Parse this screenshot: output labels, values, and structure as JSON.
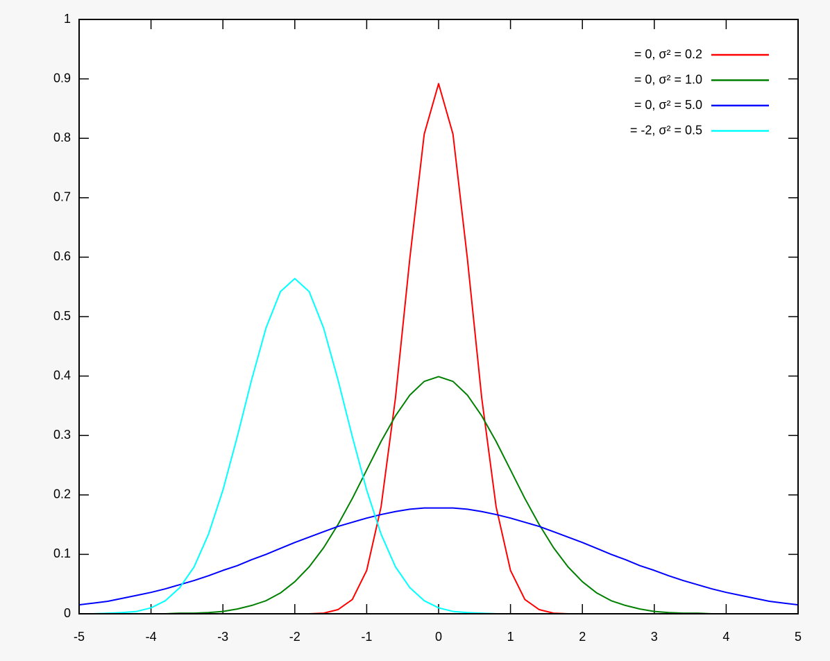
{
  "chart_data": {
    "type": "line",
    "x": [
      -5,
      -4.8,
      -4.6,
      -4.4,
      -4.2,
      -4,
      -3.8,
      -3.6,
      -3.4,
      -3.2,
      -3,
      -2.8,
      -2.6,
      -2.4,
      -2.2,
      -2,
      -1.8,
      -1.6,
      -1.4,
      -1.2,
      -1,
      -0.8,
      -0.6,
      -0.4,
      -0.2,
      0,
      0.2,
      0.4,
      0.6,
      0.8,
      1,
      1.2,
      1.4,
      1.6,
      1.8,
      2,
      2.2,
      2.4,
      2.6,
      2.8,
      3,
      3.2,
      3.4,
      3.6,
      3.8,
      4,
      4.2,
      4.4,
      4.6,
      4.8,
      5
    ],
    "series": [
      {
        "name": "= 0, σ² = 0.2",
        "color": "#ff0000",
        "values": [
          0,
          0,
          0,
          0,
          0,
          0,
          0,
          0,
          0,
          0,
          0,
          0,
          0,
          0,
          0,
          0,
          0,
          0.001,
          0.007,
          0.024,
          0.073,
          0.18,
          0.363,
          0.598,
          0.807,
          0.892,
          0.807,
          0.598,
          0.363,
          0.18,
          0.073,
          0.024,
          0.007,
          0.001,
          0,
          0,
          0,
          0,
          0,
          0,
          0,
          0,
          0,
          0,
          0,
          0,
          0,
          0,
          0,
          0,
          0
        ]
      },
      {
        "name": "= 0, σ² = 1.0",
        "color": "#008000",
        "values": [
          0,
          0,
          0,
          0,
          0,
          0,
          0,
          0.001,
          0.001,
          0.002,
          0.004,
          0.008,
          0.014,
          0.022,
          0.035,
          0.054,
          0.079,
          0.111,
          0.15,
          0.194,
          0.242,
          0.29,
          0.333,
          0.368,
          0.391,
          0.399,
          0.391,
          0.368,
          0.333,
          0.29,
          0.242,
          0.194,
          0.15,
          0.111,
          0.079,
          0.054,
          0.035,
          0.022,
          0.014,
          0.008,
          0.004,
          0.002,
          0.001,
          0.001,
          0,
          0,
          0,
          0,
          0,
          0,
          0
        ]
      },
      {
        "name": "= 0, σ² = 5.0",
        "color": "#0000ff",
        "values": [
          0.015,
          0.018,
          0.021,
          0.026,
          0.031,
          0.036,
          0.042,
          0.049,
          0.056,
          0.064,
          0.073,
          0.081,
          0.091,
          0.1,
          0.11,
          0.12,
          0.129,
          0.138,
          0.147,
          0.154,
          0.161,
          0.167,
          0.172,
          0.176,
          0.178,
          0.178,
          0.178,
          0.176,
          0.172,
          0.167,
          0.161,
          0.154,
          0.147,
          0.138,
          0.129,
          0.12,
          0.11,
          0.1,
          0.091,
          0.081,
          0.073,
          0.064,
          0.056,
          0.049,
          0.042,
          0.036,
          0.031,
          0.026,
          0.021,
          0.018,
          0.015
        ]
      },
      {
        "name": "= -2, σ² = 0.5",
        "color": "#00ffff",
        "values": [
          0,
          0,
          0.001,
          0.002,
          0.004,
          0.01,
          0.022,
          0.044,
          0.079,
          0.134,
          0.208,
          0.298,
          0.394,
          0.481,
          0.542,
          0.564,
          0.542,
          0.481,
          0.394,
          0.298,
          0.208,
          0.134,
          0.079,
          0.044,
          0.022,
          0.01,
          0.004,
          0.002,
          0.001,
          0,
          0,
          0,
          0,
          0,
          0,
          0,
          0,
          0,
          0,
          0,
          0,
          0,
          0,
          0,
          0,
          0,
          0,
          0,
          0,
          0,
          0
        ]
      }
    ],
    "xlim": [
      -5,
      5
    ],
    "xticks": [
      -5,
      -4,
      -3,
      -2,
      -1,
      0,
      1,
      2,
      3,
      4,
      5
    ],
    "ylim": [
      0,
      1
    ],
    "yticks": [
      0,
      0.1,
      0.2,
      0.3,
      0.4,
      0.5,
      0.6,
      0.7,
      0.8,
      0.9,
      1
    ],
    "legend": "top-right"
  }
}
